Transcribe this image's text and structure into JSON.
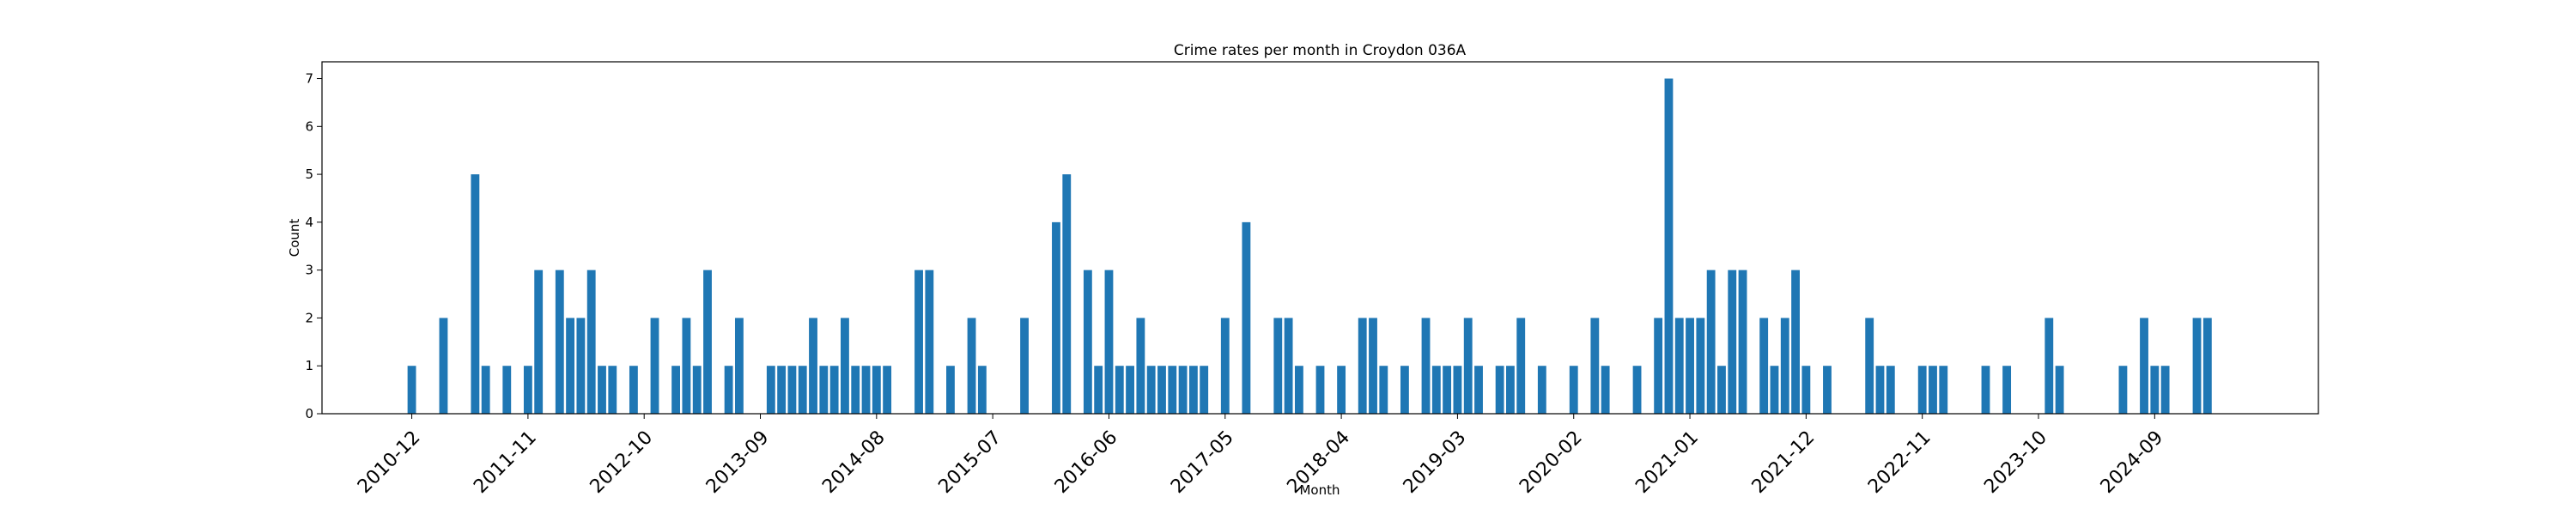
{
  "chart_data": {
    "type": "bar",
    "title": "Crime rates per month in Croydon 036A",
    "xlabel": "Month",
    "ylabel": "Count",
    "ylim": [
      0,
      7.35
    ],
    "yticks": [
      0,
      1,
      2,
      3,
      4,
      5,
      6,
      7
    ],
    "xlim": [
      -8.5,
      180.5
    ],
    "xticks": [
      {
        "label": "2010-12",
        "x": 0
      },
      {
        "label": "2011-11",
        "x": 11
      },
      {
        "label": "2012-10",
        "x": 22
      },
      {
        "label": "2013-09",
        "x": 33
      },
      {
        "label": "2014-08",
        "x": 44
      },
      {
        "label": "2015-07",
        "x": 55
      },
      {
        "label": "2016-06",
        "x": 66
      },
      {
        "label": "2017-05",
        "x": 77
      },
      {
        "label": "2018-04",
        "x": 88
      },
      {
        "label": "2019-03",
        "x": 99
      },
      {
        "label": "2020-02",
        "x": 110
      },
      {
        "label": "2021-01",
        "x": 121
      },
      {
        "label": "2021-12",
        "x": 132
      },
      {
        "label": "2022-11",
        "x": 143
      },
      {
        "label": "2023-10",
        "x": 154
      },
      {
        "label": "2024-09",
        "x": 165
      }
    ],
    "bar_color": "#1f77b4",
    "bars": [
      {
        "x": 0,
        "value": 1
      },
      {
        "x": 3,
        "value": 2
      },
      {
        "x": 6,
        "value": 5
      },
      {
        "x": 7,
        "value": 1
      },
      {
        "x": 9,
        "value": 1
      },
      {
        "x": 11,
        "value": 1
      },
      {
        "x": 12,
        "value": 3
      },
      {
        "x": 14,
        "value": 3
      },
      {
        "x": 15,
        "value": 2
      },
      {
        "x": 16,
        "value": 2
      },
      {
        "x": 17,
        "value": 3
      },
      {
        "x": 18,
        "value": 1
      },
      {
        "x": 19,
        "value": 1
      },
      {
        "x": 21,
        "value": 1
      },
      {
        "x": 23,
        "value": 2
      },
      {
        "x": 25,
        "value": 1
      },
      {
        "x": 26,
        "value": 2
      },
      {
        "x": 27,
        "value": 1
      },
      {
        "x": 28,
        "value": 3
      },
      {
        "x": 30,
        "value": 1
      },
      {
        "x": 31,
        "value": 2
      },
      {
        "x": 34,
        "value": 1
      },
      {
        "x": 35,
        "value": 1
      },
      {
        "x": 36,
        "value": 1
      },
      {
        "x": 37,
        "value": 1
      },
      {
        "x": 38,
        "value": 2
      },
      {
        "x": 39,
        "value": 1
      },
      {
        "x": 40,
        "value": 1
      },
      {
        "x": 41,
        "value": 2
      },
      {
        "x": 42,
        "value": 1
      },
      {
        "x": 43,
        "value": 1
      },
      {
        "x": 44,
        "value": 1
      },
      {
        "x": 45,
        "value": 1
      },
      {
        "x": 48,
        "value": 3
      },
      {
        "x": 49,
        "value": 3
      },
      {
        "x": 51,
        "value": 1
      },
      {
        "x": 53,
        "value": 2
      },
      {
        "x": 54,
        "value": 1
      },
      {
        "x": 58,
        "value": 2
      },
      {
        "x": 61,
        "value": 4
      },
      {
        "x": 62,
        "value": 5
      },
      {
        "x": 64,
        "value": 3
      },
      {
        "x": 65,
        "value": 1
      },
      {
        "x": 66,
        "value": 3
      },
      {
        "x": 67,
        "value": 1
      },
      {
        "x": 68,
        "value": 1
      },
      {
        "x": 69,
        "value": 2
      },
      {
        "x": 70,
        "value": 1
      },
      {
        "x": 71,
        "value": 1
      },
      {
        "x": 72,
        "value": 1
      },
      {
        "x": 73,
        "value": 1
      },
      {
        "x": 74,
        "value": 1
      },
      {
        "x": 75,
        "value": 1
      },
      {
        "x": 77,
        "value": 2
      },
      {
        "x": 79,
        "value": 4
      },
      {
        "x": 82,
        "value": 2
      },
      {
        "x": 83,
        "value": 2
      },
      {
        "x": 84,
        "value": 1
      },
      {
        "x": 86,
        "value": 1
      },
      {
        "x": 88,
        "value": 1
      },
      {
        "x": 90,
        "value": 2
      },
      {
        "x": 91,
        "value": 2
      },
      {
        "x": 92,
        "value": 1
      },
      {
        "x": 94,
        "value": 1
      },
      {
        "x": 96,
        "value": 2
      },
      {
        "x": 97,
        "value": 1
      },
      {
        "x": 98,
        "value": 1
      },
      {
        "x": 99,
        "value": 1
      },
      {
        "x": 100,
        "value": 2
      },
      {
        "x": 101,
        "value": 1
      },
      {
        "x": 103,
        "value": 1
      },
      {
        "x": 104,
        "value": 1
      },
      {
        "x": 105,
        "value": 2
      },
      {
        "x": 107,
        "value": 1
      },
      {
        "x": 110,
        "value": 1
      },
      {
        "x": 112,
        "value": 2
      },
      {
        "x": 113,
        "value": 1
      },
      {
        "x": 116,
        "value": 1
      },
      {
        "x": 118,
        "value": 2
      },
      {
        "x": 119,
        "value": 7
      },
      {
        "x": 120,
        "value": 2
      },
      {
        "x": 121,
        "value": 2
      },
      {
        "x": 122,
        "value": 2
      },
      {
        "x": 123,
        "value": 3
      },
      {
        "x": 124,
        "value": 1
      },
      {
        "x": 125,
        "value": 3
      },
      {
        "x": 126,
        "value": 3
      },
      {
        "x": 128,
        "value": 2
      },
      {
        "x": 129,
        "value": 1
      },
      {
        "x": 130,
        "value": 2
      },
      {
        "x": 131,
        "value": 3
      },
      {
        "x": 132,
        "value": 1
      },
      {
        "x": 134,
        "value": 1
      },
      {
        "x": 138,
        "value": 2
      },
      {
        "x": 139,
        "value": 1
      },
      {
        "x": 140,
        "value": 1
      },
      {
        "x": 143,
        "value": 1
      },
      {
        "x": 144,
        "value": 1
      },
      {
        "x": 145,
        "value": 1
      },
      {
        "x": 149,
        "value": 1
      },
      {
        "x": 151,
        "value": 1
      },
      {
        "x": 155,
        "value": 2
      },
      {
        "x": 156,
        "value": 1
      },
      {
        "x": 162,
        "value": 1
      },
      {
        "x": 164,
        "value": 2
      },
      {
        "x": 165,
        "value": 1
      },
      {
        "x": 166,
        "value": 1
      },
      {
        "x": 169,
        "value": 2
      },
      {
        "x": 170,
        "value": 2
      }
    ]
  }
}
